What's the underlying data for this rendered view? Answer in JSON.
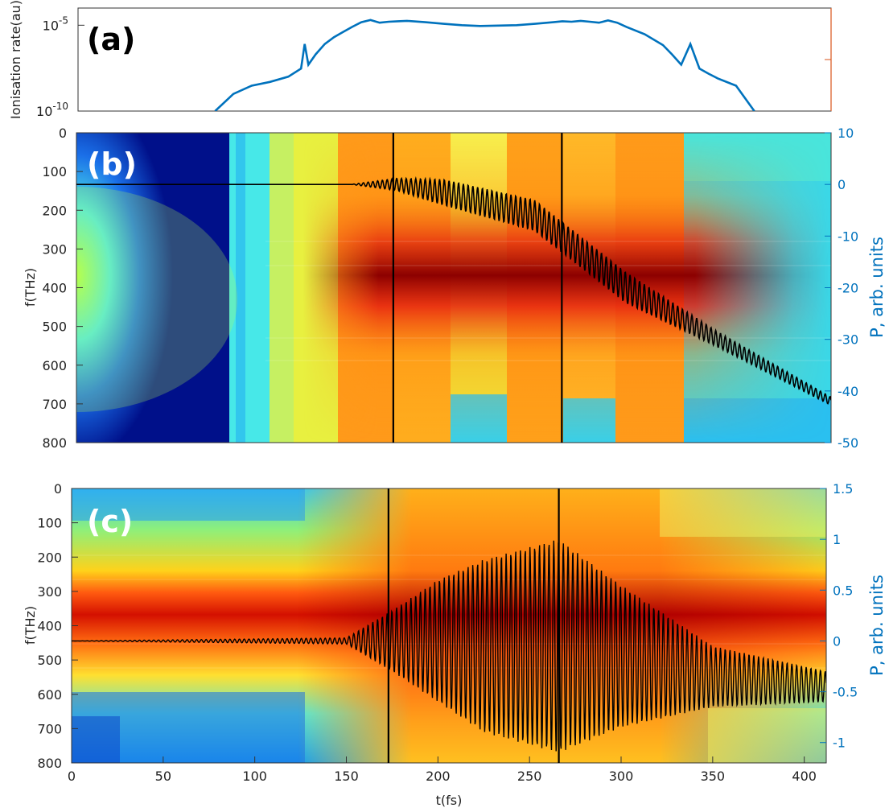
{
  "chart_data": [
    {
      "id": "a",
      "type": "line",
      "panel_label": "(a)",
      "ylabel": "Ionisation rate(au)",
      "yscale": "log",
      "ylim": [
        1e-10,
        0.0001
      ],
      "xlim": [
        0,
        412
      ],
      "yticks": [
        {
          "v": 1e-10,
          "label": "10^-10"
        },
        {
          "v": 1e-05,
          "label": "10^-5"
        }
      ],
      "line_color": "#0072BD",
      "right_axis_color": "#D95319",
      "series": [
        {
          "x": [
            75,
            85,
            95,
            105,
            115,
            122,
            124,
            126,
            130,
            135,
            140,
            145,
            150,
            155,
            160,
            165,
            170,
            175,
            180,
            190,
            200,
            210,
            220,
            230,
            240,
            250,
            260,
            265,
            270,
            275,
            280,
            285,
            290,
            295,
            300,
            310,
            320,
            325,
            330,
            335,
            340,
            345,
            350,
            360,
            370
          ],
          "y": [
            1e-10,
            1e-09,
            3e-09,
            5e-09,
            1e-08,
            3e-08,
            8e-07,
            5e-08,
            2e-07,
            8e-07,
            2e-06,
            4e-06,
            8e-06,
            1.5e-05,
            2e-05,
            1.4e-05,
            1.6e-05,
            1.7e-05,
            1.8e-05,
            1.5e-05,
            1.2e-05,
            1e-05,
            9e-06,
            9.5e-06,
            1e-05,
            1.2e-05,
            1.5e-05,
            1.7e-05,
            1.6e-05,
            1.8e-05,
            1.6e-05,
            1.4e-05,
            1.9e-05,
            1.4e-05,
            8e-06,
            3e-06,
            7e-07,
            2e-07,
            5e-08,
            8e-07,
            3e-08,
            1.5e-08,
            8e-09,
            3e-09,
            1e-10
          ]
        }
      ]
    },
    {
      "id": "b",
      "type": "heatmap",
      "panel_label": "(b)",
      "ylabel": "f(THz)",
      "ylabel_right": "P, arb. units",
      "xlim": [
        0,
        412
      ],
      "ylim": [
        0,
        800
      ],
      "yticks_left": [
        0,
        100,
        200,
        300,
        400,
        500,
        600,
        700,
        800
      ],
      "ylim_right": [
        -50,
        10
      ],
      "yticks_right": [
        10,
        0,
        -10,
        -20,
        -30,
        -40,
        -50
      ],
      "vlines": [
        173,
        265
      ],
      "overlay_line": {
        "description": "polarisation P(t), right axis",
        "x": [
          0,
          150,
          175,
          200,
          250,
          300,
          350,
          412
        ],
        "y": [
          0,
          0,
          0,
          -1.5,
          -6,
          -20,
          -30,
          -42
        ],
        "oscillation_amplitude": [
          0,
          0,
          1.2,
          2.5,
          3,
          3,
          1.5,
          0.8
        ]
      }
    },
    {
      "id": "c",
      "type": "heatmap",
      "panel_label": "(c)",
      "ylabel": "f(THz)",
      "ylabel_right": "P, arb. units",
      "xlabel": "t(fs)",
      "xlim": [
        0,
        412
      ],
      "xticks": [
        0,
        50,
        100,
        150,
        200,
        250,
        300,
        350,
        400
      ],
      "ylim": [
        0,
        800
      ],
      "yticks_left": [
        0,
        100,
        200,
        300,
        400,
        500,
        600,
        700,
        800
      ],
      "ylim_right": [
        -1.2,
        1.5
      ],
      "yticks_right": [
        1.5,
        1,
        0.5,
        0,
        -0.5,
        -1
      ],
      "vlines": [
        173,
        266
      ],
      "overlay_line": {
        "description": "polarisation P(t), right axis",
        "x": [
          0,
          150,
          175,
          200,
          225,
          266,
          300,
          350,
          412
        ],
        "amplitude": [
          0,
          0.03,
          0.3,
          0.6,
          0.85,
          1.05,
          0.7,
          0.3,
          0.15
        ],
        "offset": [
          0,
          0,
          0,
          0,
          -0.05,
          -0.05,
          -0.15,
          -0.35,
          -0.45
        ]
      }
    }
  ],
  "colors": {
    "line": "#0072BD",
    "overlay": "#000000",
    "right_axis_a": "#D95319",
    "right_axis_bc": "#0072BD"
  }
}
